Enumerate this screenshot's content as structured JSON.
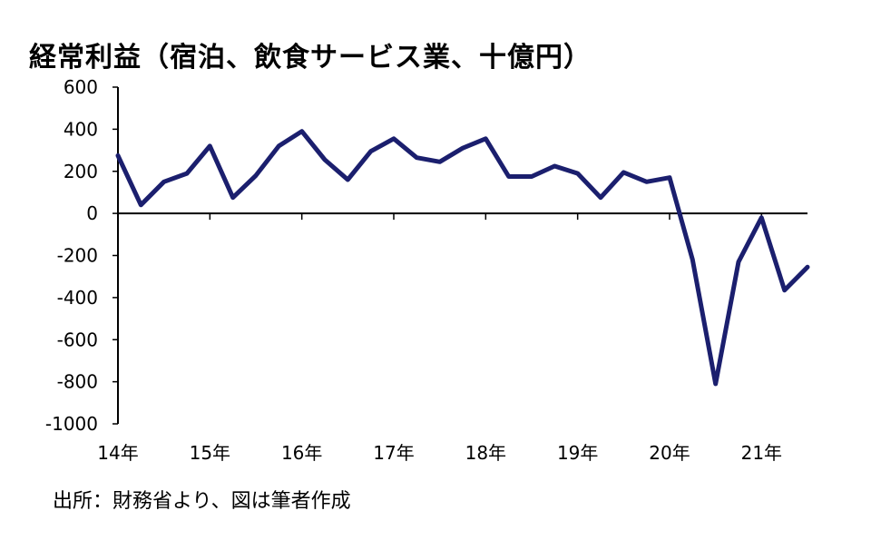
{
  "chart_data": {
    "type": "line",
    "title": "経常利益（宿泊、飲食サービス業、十億円）",
    "source": "出所：財務省より、図は筆者作成",
    "ylim": [
      -1000,
      600
    ],
    "yticks": [
      "600",
      "400",
      "200",
      "0",
      "-200",
      "-400",
      "-600",
      "-800",
      "-1000"
    ],
    "xtick_labels": [
      "14年",
      "15年",
      "16年",
      "17年",
      "18年",
      "19年",
      "20年",
      "21年"
    ],
    "grid": false,
    "series": [
      {
        "color": "#1b1f6e",
        "values": [
          275,
          40,
          150,
          190,
          320,
          75,
          180,
          320,
          390,
          255,
          160,
          295,
          355,
          265,
          245,
          310,
          355,
          175,
          175,
          225,
          190,
          75,
          195,
          150,
          170,
          -220,
          -810,
          -230,
          -20,
          -365,
          -255
        ]
      }
    ]
  }
}
